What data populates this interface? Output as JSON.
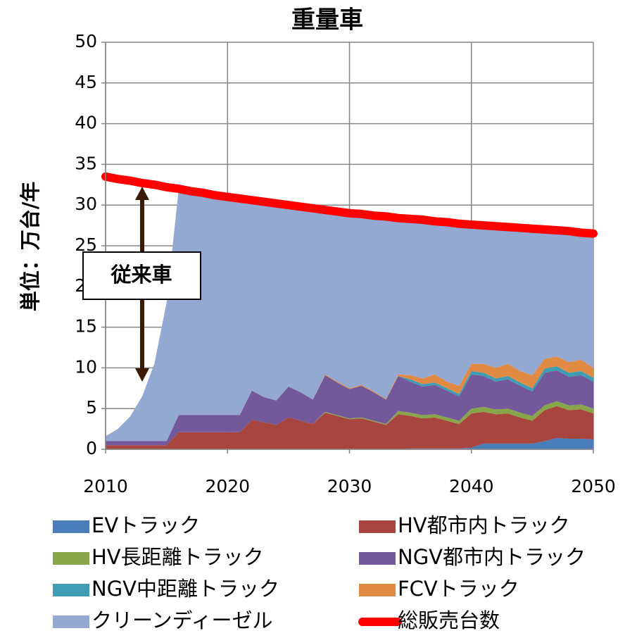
{
  "chart_data": {
    "type": "area",
    "title": "重量車",
    "y_label": "単位：万台/年",
    "annotation": "従来車",
    "x": [
      2010,
      2011,
      2012,
      2013,
      2014,
      2015,
      2016,
      2017,
      2018,
      2019,
      2020,
      2021,
      2022,
      2023,
      2024,
      2025,
      2026,
      2027,
      2028,
      2029,
      2030,
      2031,
      2032,
      2033,
      2034,
      2035,
      2036,
      2037,
      2038,
      2039,
      2040,
      2041,
      2042,
      2043,
      2044,
      2045,
      2046,
      2047,
      2048,
      2049,
      2050
    ],
    "xlim": [
      2010,
      2050
    ],
    "xticks": [
      2010,
      2020,
      2030,
      2040,
      2050
    ],
    "ylim": [
      0,
      50
    ],
    "yticks": [
      0,
      5,
      10,
      15,
      20,
      25,
      30,
      35,
      40,
      45,
      50
    ],
    "grid": true,
    "stacked": true,
    "series": [
      {
        "name": "EVトラック",
        "color": "#4a7ebb",
        "values": [
          0,
          0,
          0,
          0,
          0,
          0,
          0,
          0,
          0,
          0,
          0,
          0,
          0,
          0,
          0,
          0,
          0,
          0,
          0,
          0,
          0,
          0,
          0,
          0,
          0,
          0.1,
          0.1,
          0.1,
          0.1,
          0.1,
          0.2,
          0.7,
          0.7,
          0.7,
          0.7,
          0.7,
          1.0,
          1.4,
          1.3,
          1.3,
          1.2
        ]
      },
      {
        "name": "HV都市内トラック",
        "color": "#a9453f",
        "values": [
          0.5,
          0.5,
          0.5,
          0.5,
          0.5,
          0.5,
          2.1,
          2.1,
          2.1,
          2.1,
          2.1,
          2.1,
          3.6,
          3.3,
          3.0,
          3.9,
          3.5,
          3.1,
          4.5,
          4.1,
          3.7,
          3.8,
          3.4,
          3.0,
          4.3,
          4.0,
          3.7,
          3.8,
          3.4,
          3.0,
          4.2,
          3.9,
          3.6,
          3.7,
          3.2,
          2.8,
          3.8,
          3.9,
          3.5,
          3.6,
          3.2
        ]
      },
      {
        "name": "HV長距離トラック",
        "color": "#88a54a",
        "values": [
          0,
          0,
          0,
          0,
          0,
          0,
          0,
          0,
          0,
          0,
          0,
          0,
          0,
          0,
          0,
          0,
          0,
          0,
          0.1,
          0.1,
          0.1,
          0.1,
          0.1,
          0.1,
          0.4,
          0.4,
          0.4,
          0.4,
          0.4,
          0.4,
          0.6,
          0.6,
          0.6,
          0.6,
          0.6,
          0.6,
          0.6,
          0.6,
          0.6,
          0.6,
          0.6
        ]
      },
      {
        "name": "NGV都市内トラック",
        "color": "#73589a",
        "values": [
          0.5,
          0.5,
          0.5,
          0.5,
          0.5,
          0.5,
          2.1,
          2.1,
          2.1,
          2.1,
          2.1,
          2.1,
          3.6,
          3.1,
          3.0,
          3.8,
          3.5,
          3.0,
          4.5,
          4.0,
          3.6,
          3.9,
          3.5,
          3.0,
          4.3,
          3.8,
          3.5,
          3.6,
          3.3,
          3.0,
          4.2,
          3.8,
          3.4,
          3.6,
          3.3,
          3.0,
          4.0,
          3.8,
          3.5,
          3.6,
          3.3
        ]
      },
      {
        "name": "NGV中距離トラック",
        "color": "#3e9db3",
        "values": [
          0,
          0,
          0,
          0,
          0,
          0,
          0,
          0,
          0,
          0,
          0,
          0,
          0,
          0,
          0,
          0,
          0,
          0,
          0,
          0,
          0,
          0,
          0,
          0,
          0,
          0.3,
          0.3,
          0.3,
          0.3,
          0.3,
          0.4,
          0.4,
          0.4,
          0.4,
          0.4,
          0.4,
          0.5,
          0.5,
          0.5,
          0.5,
          0.5
        ]
      },
      {
        "name": "FCVトラック",
        "color": "#e08a43",
        "values": [
          0,
          0,
          0,
          0,
          0,
          0,
          0,
          0,
          0,
          0,
          0,
          0,
          0,
          0,
          0,
          0,
          0,
          0,
          0.1,
          0.1,
          0.1,
          0.1,
          0.1,
          0.1,
          0.2,
          0.5,
          0.7,
          1.0,
          0.8,
          1.0,
          0.9,
          1.1,
          1.3,
          1.5,
          1.4,
          1.6,
          1.2,
          1.2,
          1.3,
          1.4,
          1.2
        ]
      },
      {
        "name": "クリーンディーゼル",
        "color": "#94a9d2",
        "values": [
          0.6,
          1.5,
          3.0,
          5.5,
          9.5,
          17.0,
          27.8,
          27.5,
          27.3,
          27.0,
          26.8,
          26.6,
          23.4,
          24.0,
          24.2,
          22.3,
          22.8,
          23.5,
          20.2,
          20.9,
          21.5,
          21.0,
          21.6,
          22.4,
          19.2,
          19.2,
          19.5,
          18.8,
          19.6,
          19.9,
          17.1,
          17.0,
          17.4,
          16.8,
          17.6,
          18.0,
          15.9,
          15.5,
          16.1,
          15.6,
          16.5
        ]
      },
      {
        "name": "総販売台数",
        "color": "#ff0000",
        "type": "line",
        "values": [
          33.5,
          33.2,
          33.0,
          32.7,
          32.5,
          32.2,
          32.0,
          31.7,
          31.5,
          31.2,
          31.0,
          30.8,
          30.6,
          30.4,
          30.2,
          30.0,
          29.8,
          29.6,
          29.4,
          29.2,
          29.0,
          28.9,
          28.7,
          28.6,
          28.4,
          28.3,
          28.2,
          28.0,
          27.9,
          27.7,
          27.6,
          27.5,
          27.4,
          27.3,
          27.2,
          27.1,
          27.0,
          26.9,
          26.8,
          26.6,
          26.5
        ]
      }
    ]
  }
}
